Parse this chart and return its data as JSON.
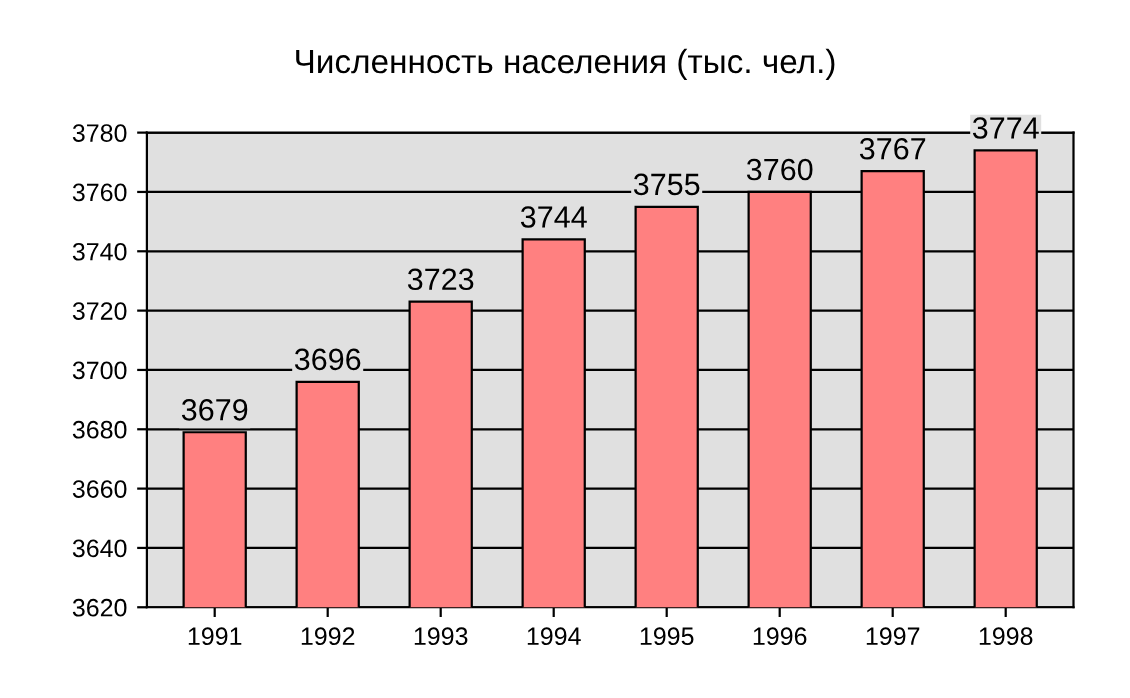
{
  "chart_data": {
    "type": "bar",
    "title": "Численность населения (тыс. чел.)",
    "categories": [
      "1991",
      "1992",
      "1993",
      "1994",
      "1995",
      "1996",
      "1997",
      "1998"
    ],
    "values": [
      3679,
      3696,
      3723,
      3744,
      3755,
      3760,
      3767,
      3774
    ],
    "color": "#ff8080",
    "ylim": [
      3620,
      3780
    ],
    "yticks": [
      3620,
      3640,
      3660,
      3680,
      3700,
      3720,
      3740,
      3760,
      3780
    ],
    "grid": "y",
    "data_labels": true
  }
}
